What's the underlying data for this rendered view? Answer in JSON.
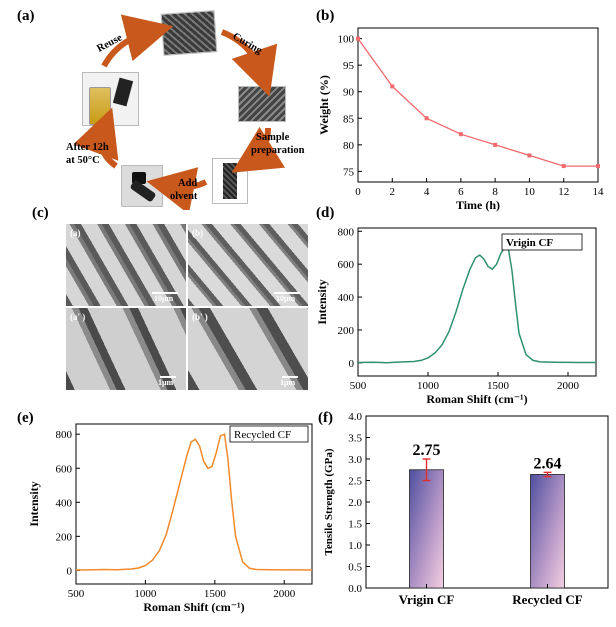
{
  "labels": {
    "a": "(a)",
    "b": "(b)",
    "c": "(c)",
    "d": "(d)",
    "e": "(e)",
    "f": "(f)"
  },
  "cycle": {
    "reuse": "Reuse",
    "curing": "Curing",
    "sample_prep_1": "Sample",
    "sample_prep_2": "preparation",
    "add_solvent_1": "Add",
    "add_solvent_2": "olvent",
    "after_1": "After 12h",
    "after_2": "at 50°C"
  },
  "sem": {
    "tiles": [
      {
        "label": "(a)",
        "scale": "10μm"
      },
      {
        "label": "(b)",
        "scale": "10μm"
      },
      {
        "label": "(a' )",
        "scale": "1μm"
      },
      {
        "label": "(b' )",
        "scale": "1μm"
      }
    ]
  },
  "chart_data": [
    {
      "id": "b",
      "type": "line",
      "xlabel": "Time (h)",
      "ylabel": "Weight (%)",
      "xlim": [
        0,
        14
      ],
      "ylim": [
        73,
        102
      ],
      "xticks": [
        0,
        2,
        4,
        6,
        8,
        10,
        12,
        14
      ],
      "yticks": [
        75,
        80,
        85,
        90,
        95,
        100
      ],
      "series": [
        {
          "x": [
            0,
            2,
            4,
            6,
            8,
            10,
            12,
            14
          ],
          "values": [
            100,
            91,
            85,
            82,
            80,
            78,
            76,
            76
          ]
        }
      ],
      "color": "#f06a6e"
    },
    {
      "id": "d",
      "type": "line",
      "legend": "Vrigin CF",
      "xlabel": "Roman Shift (cm⁻¹)",
      "ylabel": "Intensity",
      "xlim": [
        500,
        2200
      ],
      "ylim": [
        -80,
        820
      ],
      "xticks": [
        500,
        1000,
        1500,
        2000
      ],
      "yticks": [
        0,
        200,
        400,
        600,
        800
      ],
      "series": [
        {
          "x": [
            500,
            600,
            700,
            800,
            900,
            950,
            1000,
            1050,
            1100,
            1150,
            1200,
            1250,
            1300,
            1340,
            1370,
            1400,
            1430,
            1460,
            1490,
            1520,
            1550,
            1575,
            1600,
            1625,
            1650,
            1700,
            1750,
            1800,
            1900,
            2000,
            2100,
            2200
          ],
          "values": [
            2,
            4,
            1,
            5,
            8,
            15,
            30,
            60,
            110,
            190,
            310,
            450,
            570,
            640,
            655,
            630,
            585,
            570,
            600,
            665,
            705,
            690,
            560,
            360,
            180,
            50,
            15,
            6,
            4,
            3,
            2,
            2
          ]
        }
      ],
      "color": "#2e9170"
    },
    {
      "id": "e",
      "type": "line",
      "legend": "Recycled CF",
      "xlabel": "Roman Shift (cm⁻¹)",
      "ylabel": "Intensity",
      "xlim": [
        500,
        2200
      ],
      "ylim": [
        -80,
        860
      ],
      "xticks": [
        500,
        1000,
        1500,
        2000
      ],
      "yticks": [
        0,
        200,
        400,
        600,
        800
      ],
      "series": [
        {
          "x": [
            500,
            600,
            700,
            800,
            900,
            950,
            1000,
            1050,
            1100,
            1150,
            1200,
            1250,
            1300,
            1330,
            1360,
            1390,
            1420,
            1450,
            1480,
            1510,
            1540,
            1570,
            1595,
            1620,
            1650,
            1700,
            1750,
            1800,
            1900,
            2000,
            2100,
            2200
          ],
          "values": [
            2,
            3,
            5,
            4,
            8,
            14,
            28,
            60,
            115,
            210,
            360,
            520,
            680,
            755,
            770,
            730,
            640,
            600,
            610,
            690,
            790,
            800,
            650,
            420,
            200,
            50,
            12,
            5,
            4,
            3,
            3,
            2
          ]
        }
      ],
      "color": "#f08a2a"
    },
    {
      "id": "f",
      "type": "bar",
      "ylabel": "Tensile Strength (GPa)",
      "categories": [
        "Vrigin CF",
        "Recycled CF"
      ],
      "values": [
        2.75,
        2.64
      ],
      "value_labels": [
        "2.75",
        "2.64"
      ],
      "errors": [
        0.25,
        0.05
      ],
      "ylim": [
        0,
        4.0
      ],
      "yticks": [
        "0.0",
        "0.5",
        "1.0",
        "1.5",
        "2.0",
        "2.5",
        "3.0",
        "3.5",
        "4.0"
      ],
      "error_color": "#e52d2d"
    }
  ]
}
